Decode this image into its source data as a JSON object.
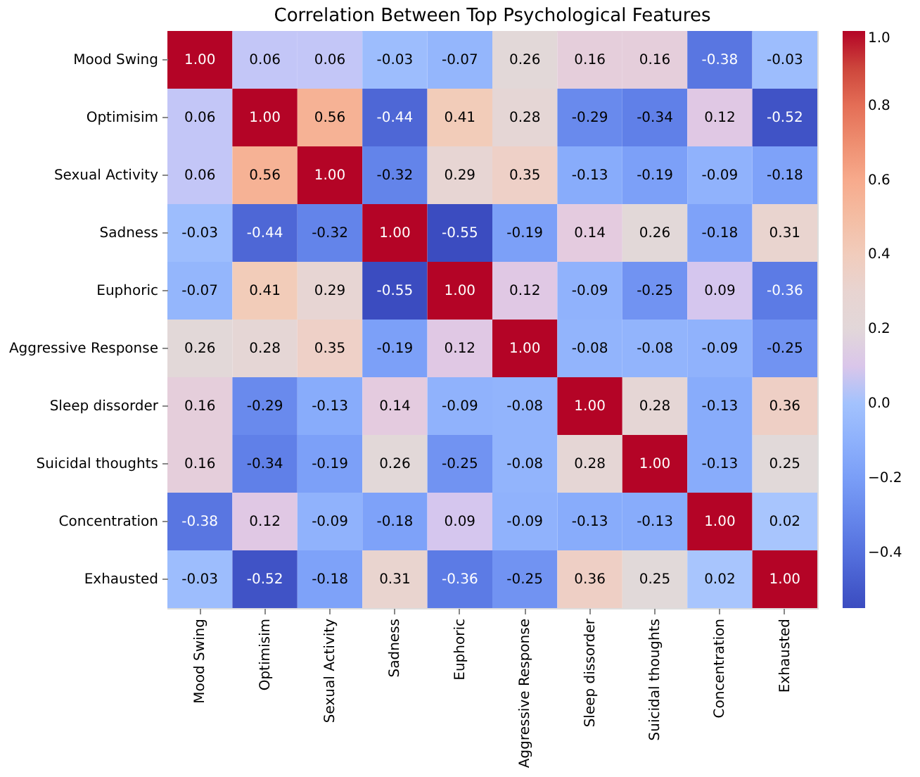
{
  "chart_data": {
    "type": "heatmap",
    "title": "Correlation Between Top Psychological Features",
    "categories": [
      "Mood Swing",
      "Optimisim",
      "Sexual Activity",
      "Sadness",
      "Euphoric",
      "Aggressive Response",
      "Sleep dissorder",
      "Suicidal thoughts",
      "Concentration",
      "Exhausted"
    ],
    "y_categories": [
      "Mood Swing",
      "Optimisim",
      "Sexual Activity",
      "Sadness",
      "Euphoric",
      "Aggressive Response",
      "Sleep dissorder",
      "Suicidal thoughts",
      "Concentration",
      "Exhausted"
    ],
    "cells": [
      [
        1.0,
        0.06,
        0.06,
        -0.03,
        -0.07,
        0.26,
        0.16,
        0.16,
        -0.38,
        -0.03
      ],
      [
        0.06,
        1.0,
        0.56,
        -0.44,
        0.41,
        0.28,
        -0.29,
        -0.34,
        0.12,
        -0.52
      ],
      [
        0.06,
        0.56,
        1.0,
        -0.32,
        0.29,
        0.35,
        -0.13,
        -0.19,
        -0.09,
        -0.18
      ],
      [
        -0.03,
        -0.44,
        -0.32,
        1.0,
        -0.55,
        -0.19,
        0.14,
        0.26,
        -0.18,
        0.31
      ],
      [
        -0.07,
        0.41,
        0.29,
        -0.55,
        1.0,
        0.12,
        -0.09,
        -0.25,
        0.09,
        -0.36
      ],
      [
        0.26,
        0.28,
        0.35,
        -0.19,
        0.12,
        1.0,
        -0.08,
        -0.08,
        -0.09,
        -0.25
      ],
      [
        0.16,
        -0.29,
        -0.13,
        0.14,
        -0.09,
        -0.08,
        1.0,
        0.28,
        -0.13,
        0.36
      ],
      [
        0.16,
        -0.34,
        -0.19,
        0.26,
        -0.25,
        -0.08,
        0.28,
        1.0,
        -0.13,
        0.25
      ],
      [
        -0.38,
        0.12,
        -0.09,
        -0.18,
        0.09,
        -0.09,
        -0.13,
        -0.13,
        1.0,
        0.02
      ],
      [
        -0.03,
        -0.52,
        -0.18,
        0.31,
        -0.36,
        -0.25,
        0.36,
        0.25,
        0.02,
        1.0
      ]
    ],
    "cell_labels": [
      [
        "1.00",
        "0.06",
        "0.06",
        "-0.03",
        "-0.07",
        "0.26",
        "0.16",
        "0.16",
        "-0.38",
        "-0.03"
      ],
      [
        "0.06",
        "1.00",
        "0.56",
        "-0.44",
        "0.41",
        "0.28",
        "-0.29",
        "-0.34",
        "0.12",
        "-0.52"
      ],
      [
        "0.06",
        "0.56",
        "1.00",
        "-0.32",
        "0.29",
        "0.35",
        "-0.13",
        "-0.19",
        "-0.09",
        "-0.18"
      ],
      [
        "-0.03",
        "-0.44",
        "-0.32",
        "1.00",
        "-0.55",
        "-0.19",
        "0.14",
        "0.26",
        "-0.18",
        "0.31"
      ],
      [
        "-0.07",
        "0.41",
        "0.29",
        "-0.55",
        "1.00",
        "0.12",
        "-0.09",
        "-0.25",
        "0.09",
        "-0.36"
      ],
      [
        "0.26",
        "0.28",
        "0.35",
        "-0.19",
        "0.12",
        "1.00",
        "-0.08",
        "-0.08",
        "-0.09",
        "-0.25"
      ],
      [
        "0.16",
        "-0.29",
        "-0.13",
        "0.14",
        "-0.09",
        "-0.08",
        "1.00",
        "0.28",
        "-0.13",
        "0.36"
      ],
      [
        "0.16",
        "-0.34",
        "-0.19",
        "0.26",
        "-0.25",
        "-0.08",
        "0.28",
        "1.00",
        "-0.13",
        "0.25"
      ],
      [
        "-0.38",
        "0.12",
        "-0.09",
        "-0.18",
        "0.09",
        "-0.09",
        "-0.13",
        "-0.13",
        "1.00",
        "0.02"
      ],
      [
        "-0.03",
        "-0.52",
        "-0.18",
        "0.31",
        "-0.36",
        "-0.25",
        "0.36",
        "0.25",
        "0.02",
        "1.00"
      ]
    ],
    "clim": [
      -0.55,
      1.0
    ],
    "cticks": [
      {
        "value": -0.4,
        "label": "−0.4"
      },
      {
        "value": -0.2,
        "label": "−0.2"
      },
      {
        "value": 0.0,
        "label": "0.0"
      },
      0.2,
      0.4,
      0.6,
      0.8,
      {
        "value": 1.0,
        "label": "1.0"
      }
    ],
    "data_labels": true
  }
}
